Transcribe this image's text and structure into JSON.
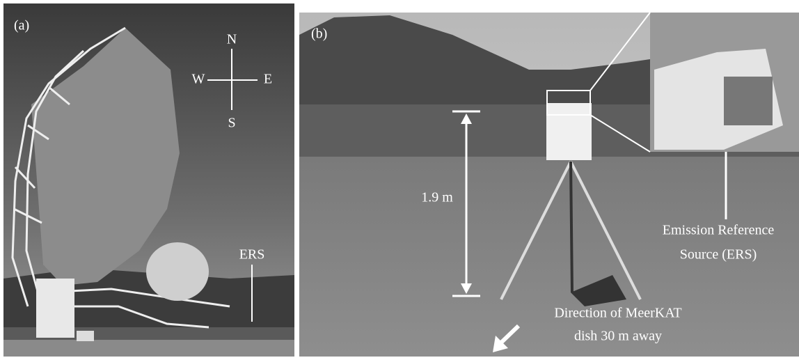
{
  "panels": [
    {
      "label": "(a)",
      "compass": {
        "north": "N",
        "west": "W",
        "east": "E",
        "south": "S"
      },
      "annotation": "ERS"
    },
    {
      "label": "(b)",
      "height_label": "1.9 m",
      "ers_label": [
        "Emission Reference",
        "Source (ERS)"
      ],
      "direction_label": [
        "Direction of MeerKAT",
        "dish 30 m away"
      ]
    }
  ]
}
